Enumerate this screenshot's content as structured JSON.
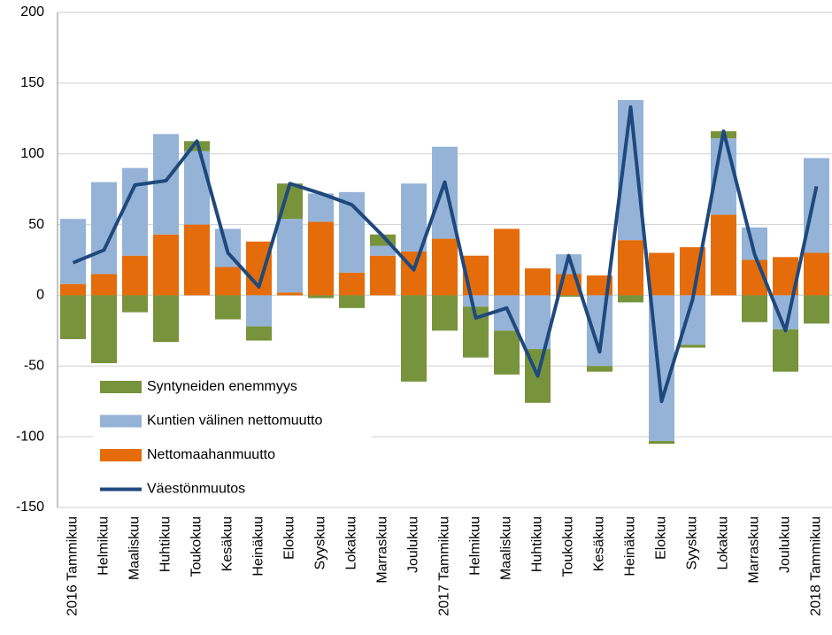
{
  "chart_data": {
    "type": "bar",
    "categories": [
      "2016 Tammikuu",
      "Helmikuu",
      "Maaliskuu",
      "Huhtikuu",
      "Toukokuu",
      "Kesäkuu",
      "Heinäkuu",
      "Elokuu",
      "Syyskuu",
      "Lokakuu",
      "Marraskuu",
      "Joulukuu",
      "2017 Tammikuu",
      "Helmikuu",
      "Maaliskuu",
      "Huhtikuu",
      "Toukokuu",
      "Kesäkuu",
      "Heinäkuu",
      "Elokuu",
      "Syyskuu",
      "Lokakuu",
      "Marraskuu",
      "Joulukuu",
      "2018 Tammikuu"
    ],
    "series": [
      {
        "name": "Syntyneiden enemmyys",
        "color": "#77933c",
        "type": "bar",
        "values": [
          -31,
          -48,
          -12,
          -33,
          7,
          -17,
          -10,
          25,
          -2,
          -9,
          8,
          -61,
          -25,
          -36,
          -31,
          -38,
          -1,
          -4,
          -5,
          -2,
          -2,
          5,
          -19,
          -30,
          -20
        ]
      },
      {
        "name": "Kuntien välinen nettomuutto",
        "color": "#95b3d7",
        "type": "bar",
        "values": [
          46,
          65,
          62,
          71,
          52,
          27,
          -22,
          52,
          20,
          57,
          7,
          48,
          65,
          -8,
          -25,
          -38,
          14,
          -50,
          99,
          -103,
          -35,
          54,
          23,
          -24,
          67
        ]
      },
      {
        "name": "Nettomaahanmuutto",
        "color": "#e46c0a",
        "type": "bar",
        "values": [
          8,
          15,
          28,
          43,
          50,
          20,
          38,
          2,
          52,
          16,
          28,
          31,
          40,
          28,
          47,
          19,
          15,
          14,
          39,
          30,
          34,
          57,
          25,
          27,
          30
        ]
      },
      {
        "name": "Väestönmuutos",
        "color": "#1f497d",
        "type": "line",
        "values": [
          23,
          32,
          78,
          81,
          109,
          30,
          6,
          79,
          72,
          64,
          42,
          18,
          80,
          -16,
          -9,
          -57,
          28,
          -40,
          133,
          -75,
          -3,
          116,
          29,
          -25,
          77
        ]
      }
    ],
    "ylim": [
      -150,
      200
    ],
    "yticks": [
      -150,
      -100,
      -50,
      0,
      50,
      100,
      150,
      200
    ],
    "grid": true,
    "legend": "lower left"
  }
}
